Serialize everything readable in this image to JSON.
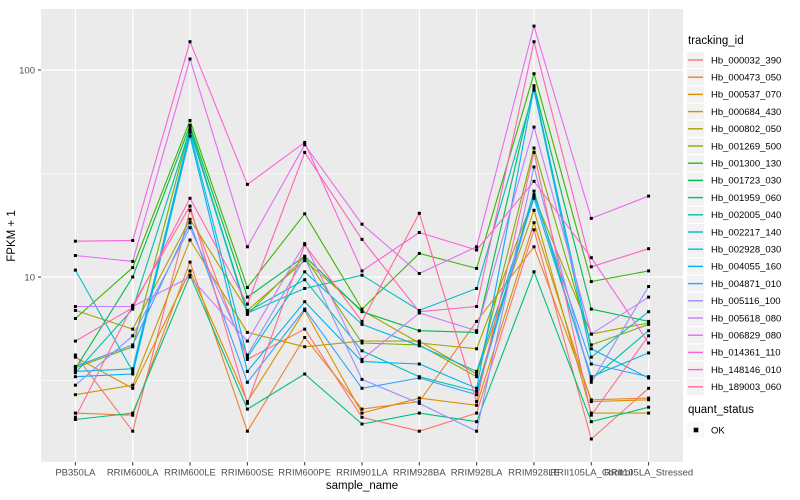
{
  "chart_data": {
    "type": "line",
    "title": "",
    "xlabel": "sample_name",
    "ylabel": "FPKM + 1",
    "y_scale": "log10",
    "y_ticks": [
      {
        "label": "10",
        "value": 10
      },
      {
        "label": "100",
        "value": 100
      }
    ],
    "y_minor_values": [
      3.162,
      31.62
    ],
    "grid": true,
    "legend_position": "right",
    "categories": [
      "PB350LA",
      "RRIM600LA",
      "RRIM600LE",
      "RRIM600SE",
      "RRIM600PE",
      "RRIM901LA",
      "RRIM928BA",
      "RRIM928LA",
      "RRIM928LE",
      "RRII105LA_Control",
      "RRII105LA_Stressed"
    ],
    "series": [
      {
        "name": "Hb_000032_390",
        "color": "#F8766D",
        "values": [
          4.2,
          1.8,
          21,
          4.0,
          5.6,
          2.1,
          1.8,
          2.2,
          16.9,
          1.65,
          2.9
        ]
      },
      {
        "name": "Hb_000473_050",
        "color": "#EA8331",
        "values": [
          2.2,
          2.15,
          11.8,
          1.8,
          5.1,
          2.3,
          2.5,
          6.1,
          14,
          2.55,
          2.6
        ]
      },
      {
        "name": "Hb_000537_070",
        "color": "#D89000",
        "values": [
          4.1,
          2.9,
          10.7,
          2.5,
          6.9,
          2.2,
          2.6,
          2.4,
          18.3,
          2.5,
          2.55
        ]
      },
      {
        "name": "Hb_000684_430",
        "color": "#C09B00",
        "values": [
          2.7,
          3.0,
          15.1,
          5.4,
          4.6,
          4.9,
          4.9,
          3.4,
          21,
          2.2,
          2.2
        ]
      },
      {
        "name": "Hb_000802_050",
        "color": "#A3A500",
        "values": [
          6.9,
          5.6,
          19,
          6.9,
          12.0,
          6.9,
          4.8,
          4.5,
          24.5,
          5.3,
          6.0
        ]
      },
      {
        "name": "Hb_001269_500",
        "color": "#7CAE00",
        "values": [
          3.65,
          4.6,
          53,
          6.6,
          12.5,
          4.8,
          4.7,
          3.3,
          42,
          4.7,
          5.9
        ]
      },
      {
        "name": "Hb_001300_130",
        "color": "#39B600",
        "values": [
          6.3,
          11.1,
          57,
          8.9,
          20.2,
          7.0,
          13,
          11,
          96,
          9.5,
          10.7
        ]
      },
      {
        "name": "Hb_001723_030",
        "color": "#00BB4E",
        "values": [
          3.6,
          10,
          54,
          8.0,
          12.6,
          6.8,
          5.5,
          5.4,
          84,
          7.0,
          6.1
        ]
      },
      {
        "name": "Hb_001959_060",
        "color": "#00BF7D",
        "values": [
          2.05,
          2.2,
          10.2,
          2.3,
          3.4,
          1.95,
          2.2,
          2.0,
          10.6,
          2.0,
          2.35
        ]
      },
      {
        "name": "Hb_002005_040",
        "color": "#00C1A3",
        "values": [
          3.45,
          7.0,
          52,
          6.8,
          9.7,
          4.4,
          3.3,
          2.8,
          26,
          3.2,
          5.5
        ]
      },
      {
        "name": "Hb_002217_140",
        "color": "#00BFC4",
        "values": [
          10.8,
          3.5,
          51,
          6.7,
          8.8,
          10.2,
          6.9,
          8.8,
          80,
          4.1,
          6.8
        ]
      },
      {
        "name": "Hb_002928_030",
        "color": "#00BAE0",
        "values": [
          3.5,
          3.6,
          50,
          4.1,
          10.6,
          5.9,
          4.65,
          3.5,
          24,
          3.3,
          4.3
        ]
      },
      {
        "name": "Hb_004055_160",
        "color": "#00B0F6",
        "values": [
          3.3,
          3.4,
          48,
          3.5,
          7.6,
          3.9,
          3.8,
          2.9,
          82,
          4.5,
          3.25
        ]
      },
      {
        "name": "Hb_004871_010",
        "color": "#35A2FF",
        "values": [
          3.7,
          4.7,
          18.3,
          3.1,
          7.0,
          2.9,
          3.25,
          2.7,
          25,
          3.8,
          3.3
        ]
      },
      {
        "name": "Hb_005116_100",
        "color": "#9590FF",
        "values": [
          3.0,
          5.2,
          17.3,
          4.2,
          12.4,
          3.2,
          2.45,
          1.8,
          34,
          3.1,
          9.0
        ]
      },
      {
        "name": "Hb_005618_080",
        "color": "#C77CFF",
        "values": [
          7.2,
          7.2,
          10.0,
          4.9,
          14.5,
          4.0,
          6.7,
          5.5,
          53,
          5.3,
          8.0
        ]
      },
      {
        "name": "Hb_006829_080",
        "color": "#E76BF3",
        "values": [
          12.7,
          11.9,
          113,
          14,
          43.5,
          18,
          10.4,
          14,
          163,
          19.2,
          24.6
        ]
      },
      {
        "name": "Hb_014361_110",
        "color": "#FA62DB",
        "values": [
          14.9,
          15,
          137,
          28,
          44.7,
          10.7,
          16.4,
          13.5,
          29,
          12.4,
          4.8
        ]
      },
      {
        "name": "Hb_148146_010",
        "color": "#FF62BC",
        "values": [
          4.9,
          7.1,
          24,
          7.4,
          40,
          15.2,
          6.8,
          7.2,
          137,
          11.2,
          13.7
        ]
      },
      {
        "name": "Hb_189003_060",
        "color": "#FF6A98",
        "values": [
          2.1,
          7.3,
          22,
          2.45,
          14.3,
          6.1,
          20.3,
          2.5,
          40,
          2.15,
          5.2
        ]
      }
    ],
    "legend": {
      "tracking_title": "tracking_id",
      "quant_title": "quant_status",
      "quant_items": [
        {
          "label": "OK",
          "shape": "square",
          "color": "#000000"
        }
      ]
    },
    "colors": {
      "panel_bg": "#EBEBEB",
      "grid": "#FFFFFF",
      "axis_text": "#4D4D4D",
      "title_text": "#000000",
      "tick_mark": "#333333",
      "legend_key_bg": "#F2F2F2",
      "point": "#000000"
    }
  }
}
